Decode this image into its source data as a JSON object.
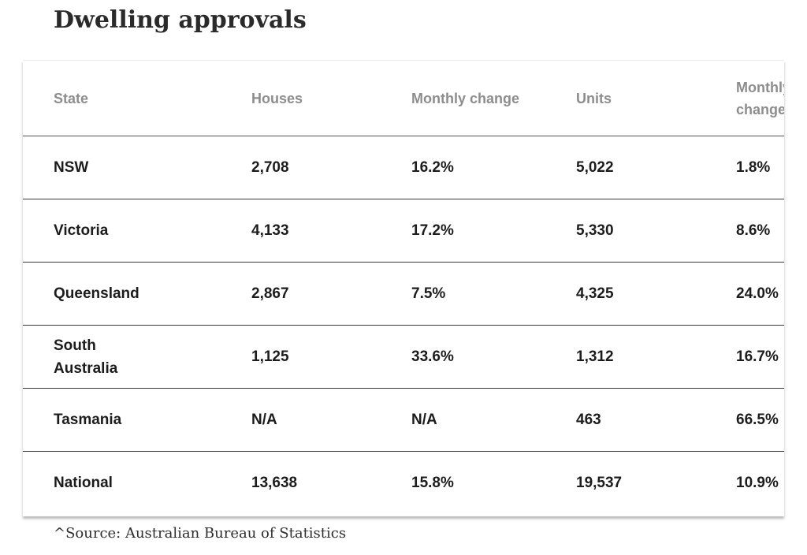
{
  "title": "Dwelling approvals",
  "table": {
    "headers": [
      "State",
      "Houses",
      "Monthly change",
      "Units",
      "Monthly change"
    ],
    "rows": [
      {
        "state": "NSW",
        "houses": "2,708",
        "houses_change": "16.2%",
        "units": "5,022",
        "units_change": "1.8%"
      },
      {
        "state": "Victoria",
        "houses": "4,133",
        "houses_change": "17.2%",
        "units": "5,330",
        "units_change": "8.6%"
      },
      {
        "state": "Queensland",
        "houses": "2,867",
        "houses_change": "7.5%",
        "units": "4,325",
        "units_change": "24.0%"
      },
      {
        "state": "South Australia",
        "houses": "1,125",
        "houses_change": "33.6%",
        "units": "1,312",
        "units_change": "16.7%"
      },
      {
        "state": "Tasmania",
        "houses": "N/A",
        "houses_change": "N/A",
        "units": "463",
        "units_change": "66.5%"
      },
      {
        "state": "National",
        "houses": "13,638",
        "houses_change": "15.8%",
        "units": "19,537",
        "units_change": "10.9%"
      }
    ]
  },
  "source": "^Source: Australian Bureau of Statistics"
}
